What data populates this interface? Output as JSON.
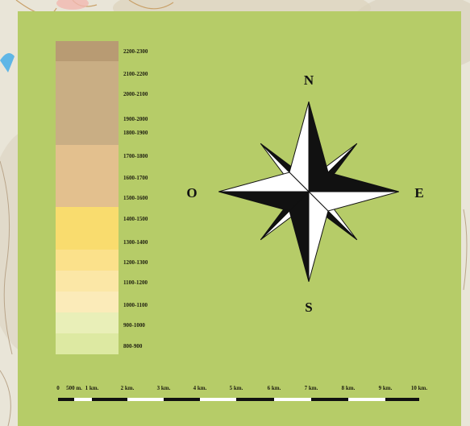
{
  "legend": {
    "bands": [
      {
        "label": "2200-2300",
        "color": "#b89b73"
      },
      {
        "label": "2100-2200",
        "color": "#c9ae84"
      },
      {
        "label": "2000-2100",
        "color": "#c9ae84"
      },
      {
        "label": "1900-2000",
        "color": "#c9ae84"
      },
      {
        "label": "1800-1900",
        "color": "#c9ae84"
      },
      {
        "label": "1700-1800",
        "color": "#e3c08e"
      },
      {
        "label": "1600-1700",
        "color": "#e3c08e"
      },
      {
        "label": "1500-1600",
        "color": "#e3c08e"
      },
      {
        "label": "1400-1500",
        "color": "#f9dc6e"
      },
      {
        "label": "1300-1400",
        "color": "#f9dc6e"
      },
      {
        "label": "1200-1300",
        "color": "#fbe18b"
      },
      {
        "label": "1100-1200",
        "color": "#fbe7a6"
      },
      {
        "label": "1000-1100",
        "color": "#fbebb9"
      },
      {
        "label": "900-1000",
        "color": "#e9efb8"
      },
      {
        "label": "800-900",
        "color": "#dde9a2"
      }
    ]
  },
  "compass": {
    "north": "N",
    "south": "S",
    "east": "E",
    "west": "O"
  },
  "scale": {
    "labels": [
      "0",
      "500 m.",
      "1 km.",
      "2 km.",
      "3 km.",
      "4 km.",
      "5 km.",
      "6 km.",
      "7 km.",
      "8 km.",
      "9 km.",
      "10 km."
    ]
  },
  "colors": {
    "panel": "#b6cc68",
    "dark": "#111111",
    "light": "#ffffff"
  }
}
